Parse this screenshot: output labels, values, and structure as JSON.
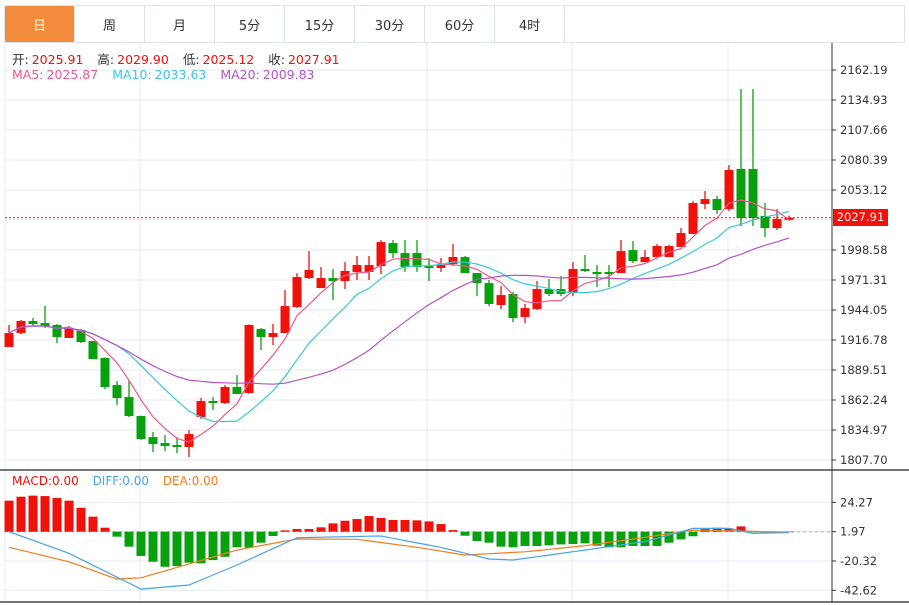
{
  "tabs": [
    {
      "label": "日",
      "active": true
    },
    {
      "label": "周"
    },
    {
      "label": "月"
    },
    {
      "label": "5分"
    },
    {
      "label": "15分"
    },
    {
      "label": "30分"
    },
    {
      "label": "60分"
    },
    {
      "label": "4时"
    }
  ],
  "ohlc_info": {
    "open_label": "开:",
    "open": "2025.91",
    "high_label": "高:",
    "high": "2029.90",
    "low_label": "低:",
    "low": "2025.12",
    "close_label": "收:",
    "close": "2027.91"
  },
  "ma_info": {
    "ma5_label": "MA5:",
    "ma5": "2025.87",
    "ma10_label": "MA10:",
    "ma10": "2033.63",
    "ma20_label": "MA20:",
    "ma20": "2009.83"
  },
  "macd_info": {
    "macd_label": "MACD:",
    "macd": "0.00",
    "diff_label": "DIFF:",
    "diff": "0.00",
    "dea_label": "DEA:",
    "dea": "0.00"
  },
  "current_price": "2027.91",
  "colors": {
    "up": "#f0110a",
    "down": "#06a10c",
    "ma5": "#ec5a8c",
    "ma10": "#3cc8dc",
    "ma20": "#b553c8",
    "diff": "#4aa3e8",
    "dea": "#f27d1c",
    "tab_active": "#f28c3c"
  },
  "chart_data": [
    {
      "type": "candlestick",
      "title": "",
      "ylim": [
        1807.7,
        2162.19
      ],
      "y_ticks": [
        "2162.19",
        "2134.93",
        "2107.66",
        "2080.39",
        "2053.12",
        "2025.85",
        "1998.58",
        "1971.31",
        "1944.05",
        "1916.78",
        "1889.51",
        "1862.24",
        "1834.97",
        "1807.70"
      ],
      "y_tick_values": [
        2162.19,
        2134.93,
        2107.66,
        2080.39,
        2053.12,
        2025.85,
        1998.58,
        1971.31,
        1944.05,
        1916.78,
        1889.51,
        1862.24,
        1834.97,
        1807.7
      ],
      "hidden_tick": "2025.85",
      "ohlc": [
        [
          1910.4,
          1930.4,
          1910.4,
          1923.1
        ],
        [
          1923.1,
          1935.0,
          1922.0,
          1934.0
        ],
        [
          1934.0,
          1936.7,
          1929.5,
          1931.3
        ],
        [
          1932.2,
          1947.6,
          1927.7,
          1929.5
        ],
        [
          1930.4,
          1931.3,
          1914.0,
          1919.5
        ],
        [
          1918.6,
          1929.5,
          1918.6,
          1927.7
        ],
        [
          1925.8,
          1926.7,
          1914.0,
          1914.9
        ],
        [
          1915.8,
          1915.8,
          1899.5,
          1899.5
        ],
        [
          1900.4,
          1901.0,
          1872.0,
          1874.0
        ],
        [
          1875.8,
          1879.5,
          1857.7,
          1864.0
        ],
        [
          1864.9,
          1879.5,
          1846.7,
          1847.7
        ],
        [
          1847.7,
          1848.0,
          1826.0,
          1826.8
        ],
        [
          1828.5,
          1833.1,
          1814.9,
          1822.2
        ],
        [
          1823.1,
          1830.4,
          1815.8,
          1820.4
        ],
        [
          1821.3,
          1828.5,
          1814.0,
          1819.5
        ],
        [
          1819.5,
          1834.9,
          1810.4,
          1831.3
        ],
        [
          1846.7,
          1864.0,
          1845.0,
          1861.3
        ],
        [
          1861.3,
          1864.9,
          1853.1,
          1859.5
        ],
        [
          1859.5,
          1875.8,
          1858.6,
          1874.0
        ],
        [
          1874.0,
          1884.9,
          1867.7,
          1867.7
        ],
        [
          1868.6,
          1931.0,
          1868.0,
          1930.4
        ],
        [
          1926.7,
          1927.7,
          1907.6,
          1919.5
        ],
        [
          1919.5,
          1931.3,
          1912.2,
          1923.1
        ],
        [
          1923.1,
          1962.2,
          1923.1,
          1947.6
        ],
        [
          1946.7,
          1977.6,
          1945.8,
          1974.0
        ],
        [
          1973.1,
          1997.6,
          1972.2,
          1980.4
        ],
        [
          1964.0,
          1983.1,
          1964.0,
          1973.1
        ],
        [
          1973.1,
          1981.3,
          1953.1,
          1970.4
        ],
        [
          1970.4,
          1987.6,
          1963.1,
          1979.5
        ],
        [
          1978.6,
          1993.1,
          1971.3,
          1984.9
        ],
        [
          1978.6,
          1993.1,
          1971.3,
          1984.9
        ],
        [
          1984.0,
          2007.6,
          1976.7,
          2005.8
        ],
        [
          2004.9,
          2007.6,
          1991.3,
          1995.8
        ],
        [
          1995.8,
          2007.6,
          1978.6,
          1983.1
        ],
        [
          1995.8,
          2007.6,
          1978.6,
          1983.1
        ],
        [
          1984.0,
          1991.3,
          1970.4,
          1982.2
        ],
        [
          1982.2,
          1991.3,
          1978.6,
          1984.9
        ],
        [
          1985.8,
          2004.0,
          1984.0,
          1992.2
        ],
        [
          1992.2,
          1993.1,
          1977.6,
          1977.6
        ],
        [
          1977.6,
          1977.6,
          1956.7,
          1968.5
        ],
        [
          1968.5,
          1971.3,
          1947.6,
          1949.5
        ],
        [
          1948.6,
          1965.8,
          1944.9,
          1957.6
        ],
        [
          1958.6,
          1960.4,
          1933.1,
          1936.7
        ],
        [
          1937.7,
          1949.5,
          1932.2,
          1945.8
        ],
        [
          1944.9,
          1970.4,
          1944.0,
          1963.1
        ],
        [
          1963.1,
          1972.2,
          1956.7,
          1958.6
        ],
        [
          1963.1,
          1974.9,
          1956.7,
          1958.6
        ],
        [
          1959.5,
          1987.6,
          1956.7,
          1981.3
        ],
        [
          1981.3,
          1994.0,
          1978.6,
          1979.5
        ],
        [
          1978.6,
          1984.9,
          1964.9,
          1976.7
        ],
        [
          1978.6,
          1984.9,
          1964.9,
          1976.7
        ],
        [
          1977.6,
          2007.6,
          1977.6,
          1997.6
        ],
        [
          1998.5,
          2006.7,
          1986.7,
          1988.5
        ],
        [
          1987.6,
          1998.5,
          1987.6,
          1992.2
        ],
        [
          1992.2,
          2004.0,
          1992.2,
          2002.2
        ],
        [
          1992.2,
          2003.1,
          1992.2,
          2002.2
        ],
        [
          2001.3,
          2018.5,
          2001.3,
          2014.0
        ],
        [
          2013.1,
          2043.0,
          2013.1,
          2041.3
        ],
        [
          2040.4,
          2052.2,
          2035.8,
          2044.9
        ],
        [
          2044.9,
          2047.6,
          2031.3,
          2034.9
        ],
        [
          2035.8,
          2075.8,
          2034.0,
          2071.3
        ],
        [
          2072.2,
          2144.9,
          2020.4,
          2027.6
        ],
        [
          2072.2,
          2144.9,
          2020.4,
          2027.6
        ],
        [
          2029.5,
          2041.3,
          2010.4,
          2018.5
        ],
        [
          2018.5,
          2035.8,
          2016.7,
          2026.7
        ],
        [
          2025.91,
          2029.9,
          2025.12,
          2027.91
        ]
      ],
      "ma_periods": [
        5,
        10,
        20
      ]
    },
    {
      "type": "bar+line",
      "title": "MACD",
      "ylim": [
        -42.62,
        24.27
      ],
      "y_ticks": [
        "24.27",
        "1.97",
        "-20.32",
        "-42.62"
      ],
      "y_tick_values": [
        24.27,
        1.97,
        -20.32,
        -42.62
      ],
      "zero_line": 1.97,
      "histogram": [
        25.6,
        28.6,
        29.4,
        29.1,
        27.6,
        25.6,
        20.2,
        13.4,
        5.0,
        -1.8,
        -9.4,
        -16.5,
        -20.9,
        -24.7,
        -24.2,
        -21.6,
        -22.1,
        -19.6,
        -17.1,
        -9.9,
        -10.2,
        -6.4,
        -1.3,
        3.0,
        4.0,
        4.0,
        5.3,
        8.3,
        10.3,
        11.6,
        13.9,
        12.4,
        10.9,
        10.9,
        10.6,
        9.8,
        7.8,
        3.2,
        -1.1,
        -5.1,
        -6.4,
        -9.4,
        -9.9,
        -8.9,
        -8.9,
        -8.4,
        -7.7,
        -7.4,
        -6.9,
        -8.7,
        -9.9,
        -9.9,
        -8.9,
        -8.9,
        -8.9,
        -6.4,
        -3.9,
        -1.5,
        4.5,
        5.0,
        4.5,
        6.0,
        1.7,
        1.5,
        1.7,
        1.97
      ],
      "diff": [
        [
          0,
          2.0
        ],
        [
          5,
          -14.5
        ],
        [
          11,
          -41.7
        ],
        [
          15,
          -38.6
        ],
        [
          19,
          -23.4
        ],
        [
          24,
          -2.6
        ],
        [
          31,
          -1.3
        ],
        [
          36,
          -10.0
        ],
        [
          40,
          -18.8
        ],
        [
          42,
          -19.6
        ],
        [
          48,
          -12.0
        ],
        [
          53,
          -5.6
        ],
        [
          57,
          4.5
        ],
        [
          60,
          4.5
        ],
        [
          62,
          0.7
        ],
        [
          65,
          1.2
        ]
      ],
      "dea": [
        [
          0,
          -9.9
        ],
        [
          5,
          -20.9
        ],
        [
          9,
          -34.1
        ],
        [
          11,
          -33.1
        ],
        [
          19,
          -12.0
        ],
        [
          24,
          -3.6
        ],
        [
          29,
          -3.8
        ],
        [
          34,
          -9.9
        ],
        [
          38,
          -15.8
        ],
        [
          43,
          -13.3
        ],
        [
          48,
          -8.7
        ],
        [
          53,
          -2.3
        ],
        [
          57,
          3.2
        ],
        [
          61,
          2.5
        ],
        [
          65,
          1.5
        ]
      ]
    }
  ]
}
